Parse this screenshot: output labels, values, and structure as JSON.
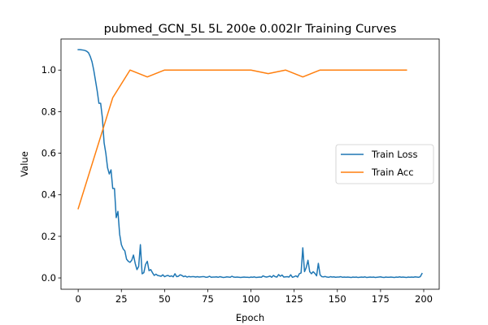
{
  "chart_data": {
    "type": "line",
    "title": "pubmed_GCN_5L  5L  200e  0.002lr  Training Curves",
    "xlabel": "Epoch",
    "ylabel": "Value",
    "xlim": [
      -9.95,
      208.95
    ],
    "ylim": [
      -0.0545,
      1.1495
    ],
    "xticks": [
      0,
      25,
      50,
      75,
      100,
      125,
      150,
      175,
      200
    ],
    "yticks": [
      0.0,
      0.2,
      0.4,
      0.6,
      0.8,
      1.0
    ],
    "ytick_labels": [
      "0.0",
      "0.2",
      "0.4",
      "0.6",
      "0.8",
      "1.0"
    ],
    "grid": false,
    "legend": "center-right",
    "series": [
      {
        "name": "Train Loss",
        "color": "#1f77b4",
        "x": [
          0,
          1,
          2,
          3,
          4,
          5,
          6,
          7,
          8,
          9,
          10,
          11,
          12,
          13,
          14,
          15,
          16,
          17,
          18,
          19,
          20,
          21,
          22,
          23,
          24,
          25,
          26,
          27,
          28,
          29,
          30,
          31,
          32,
          33,
          34,
          35,
          36,
          37,
          38,
          39,
          40,
          41,
          42,
          43,
          44,
          45,
          46,
          47,
          48,
          49,
          50,
          51,
          52,
          53,
          54,
          55,
          56,
          57,
          58,
          59,
          60,
          61,
          62,
          63,
          64,
          65,
          66,
          67,
          68,
          69,
          70,
          71,
          72,
          73,
          74,
          75,
          76,
          77,
          78,
          79,
          80,
          81,
          82,
          83,
          84,
          85,
          86,
          87,
          88,
          89,
          90,
          91,
          92,
          93,
          94,
          95,
          96,
          97,
          98,
          99,
          100,
          101,
          102,
          103,
          104,
          105,
          106,
          107,
          108,
          109,
          110,
          111,
          112,
          113,
          114,
          115,
          116,
          117,
          118,
          119,
          120,
          121,
          122,
          123,
          124,
          125,
          126,
          127,
          128,
          129,
          130,
          131,
          132,
          133,
          134,
          135,
          136,
          137,
          138,
          139,
          140,
          141,
          142,
          143,
          144,
          145,
          146,
          147,
          148,
          149,
          150,
          151,
          152,
          153,
          154,
          155,
          156,
          157,
          158,
          159,
          160,
          161,
          162,
          163,
          164,
          165,
          166,
          167,
          168,
          169,
          170,
          171,
          172,
          173,
          174,
          175,
          176,
          177,
          178,
          179,
          180,
          181,
          182,
          183,
          184,
          185,
          186,
          187,
          188,
          189,
          190,
          191,
          192,
          193,
          194,
          195,
          196,
          197,
          198,
          199
        ],
        "y": [
          1.098,
          1.098,
          1.097,
          1.096,
          1.094,
          1.09,
          1.083,
          1.065,
          1.04,
          1.0,
          0.95,
          0.9,
          0.84,
          0.84,
          0.77,
          0.65,
          0.6,
          0.53,
          0.5,
          0.52,
          0.43,
          0.43,
          0.29,
          0.32,
          0.21,
          0.16,
          0.14,
          0.13,
          0.09,
          0.08,
          0.075,
          0.085,
          0.11,
          0.07,
          0.04,
          0.055,
          0.16,
          0.02,
          0.025,
          0.065,
          0.08,
          0.035,
          0.04,
          0.025,
          0.012,
          0.018,
          0.012,
          0.01,
          0.008,
          0.015,
          0.006,
          0.01,
          0.012,
          0.007,
          0.01,
          0.005,
          0.02,
          0.006,
          0.008,
          0.015,
          0.012,
          0.006,
          0.009,
          0.004,
          0.007,
          0.005,
          0.006,
          0.006,
          0.004,
          0.006,
          0.004,
          0.005,
          0.006,
          0.006,
          0.003,
          0.004,
          0.008,
          0.003,
          0.004,
          0.004,
          0.005,
          0.003,
          0.006,
          0.004,
          0.002,
          0.003,
          0.005,
          0.004,
          0.003,
          0.008,
          0.004,
          0.003,
          0.004,
          0.003,
          0.002,
          0.003,
          0.004,
          0.003,
          0.003,
          0.002,
          0.004,
          0.003,
          0.005,
          0.002,
          0.003,
          0.004,
          0.003,
          0.01,
          0.006,
          0.004,
          0.006,
          0.009,
          0.003,
          0.012,
          0.006,
          0.004,
          0.016,
          0.008,
          0.014,
          0.004,
          0.005,
          0.006,
          0.004,
          0.015,
          0.003,
          0.006,
          0.01,
          0.004,
          0.02,
          0.024,
          0.145,
          0.03,
          0.05,
          0.085,
          0.03,
          0.02,
          0.03,
          0.022,
          0.01,
          0.07,
          0.015,
          0.006,
          0.005,
          0.007,
          0.004,
          0.003,
          0.006,
          0.004,
          0.005,
          0.003,
          0.004,
          0.004,
          0.006,
          0.003,
          0.004,
          0.003,
          0.004,
          0.003,
          0.002,
          0.004,
          0.003,
          0.004,
          0.002,
          0.003,
          0.004,
          0.003,
          0.005,
          0.002,
          0.003,
          0.004,
          0.003,
          0.004,
          0.002,
          0.003,
          0.004,
          0.005,
          0.003,
          0.002,
          0.004,
          0.003,
          0.003,
          0.004,
          0.003,
          0.002,
          0.004,
          0.003,
          0.005,
          0.003,
          0.004,
          0.003,
          0.002,
          0.004,
          0.003,
          0.004,
          0.003,
          0.005,
          0.004,
          0.003,
          0.006,
          0.021
        ]
      },
      {
        "name": "Train Acc",
        "color": "#ff7f0e",
        "x": [
          0,
          10,
          20,
          30,
          40,
          50,
          60,
          70,
          80,
          90,
          100,
          110,
          120,
          130,
          140,
          150,
          160,
          170,
          180,
          190
        ],
        "y": [
          0.333,
          0.6,
          0.867,
          1.0,
          0.967,
          1.0,
          1.0,
          1.0,
          1.0,
          1.0,
          1.0,
          0.983,
          1.0,
          0.967,
          1.0,
          1.0,
          1.0,
          1.0,
          1.0,
          1.0
        ]
      }
    ]
  }
}
